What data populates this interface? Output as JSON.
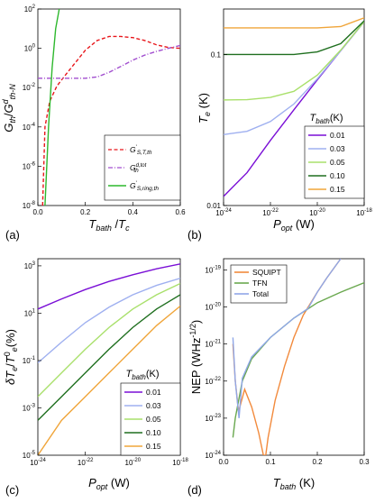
{
  "chart_data": [
    {
      "type": "line",
      "panel_label": "(a)",
      "xlabel": "T_bath / T_c",
      "ylabel": "G_th / G^d_th-N",
      "xscale": "linear",
      "yscale": "log",
      "xlim": [
        0,
        0.6
      ],
      "ylim": [
        1e-08,
        100
      ],
      "x_ticks": [
        "0.0",
        "0.2",
        "0.4",
        "0.6"
      ],
      "y_ticks": [
        "10^-8",
        "10^-6",
        "10^-4",
        "10^-2",
        "10^0",
        "10^2"
      ],
      "legend": {
        "position": "bottom-right"
      },
      "series": [
        {
          "name": "G'_S,T,th",
          "color": "#e8161b",
          "dash": "dash",
          "points": [
            [
              0.02,
              1e-08
            ],
            [
              0.03,
              0.0001
            ],
            [
              0.05,
              0.002
            ],
            [
              0.08,
              0.012
            ],
            [
              0.12,
              0.05
            ],
            [
              0.16,
              0.2
            ],
            [
              0.2,
              0.8
            ],
            [
              0.25,
              2.5
            ],
            [
              0.3,
              4
            ],
            [
              0.35,
              4
            ],
            [
              0.4,
              3.5
            ],
            [
              0.45,
              2.5
            ],
            [
              0.5,
              1.5
            ],
            [
              0.55,
              1.1
            ],
            [
              0.6,
              1.0
            ]
          ]
        },
        {
          "name": "G^d,tot_th",
          "color": "#a24fcf",
          "dash": "dashdot",
          "points": [
            [
              0.0,
              0.03
            ],
            [
              0.1,
              0.03
            ],
            [
              0.2,
              0.03
            ],
            [
              0.25,
              0.035
            ],
            [
              0.3,
              0.06
            ],
            [
              0.35,
              0.12
            ],
            [
              0.4,
              0.25
            ],
            [
              0.45,
              0.45
            ],
            [
              0.5,
              0.7
            ],
            [
              0.55,
              1.0
            ],
            [
              0.6,
              1.4
            ]
          ]
        },
        {
          "name": "G'_S,ring,th",
          "color": "#2db82d",
          "dash": "solid",
          "points": [
            [
              0.03,
              1e-08
            ],
            [
              0.045,
              0.0001
            ],
            [
              0.06,
              0.1
            ],
            [
              0.075,
              10
            ],
            [
              0.09,
              100
            ]
          ]
        }
      ]
    },
    {
      "type": "line",
      "panel_label": "(b)",
      "xlabel": "P_opt (W)",
      "ylabel": "T_e (K)",
      "xscale": "log",
      "yscale": "log",
      "xlim": [
        1e-24,
        1e-18
      ],
      "ylim": [
        0.01,
        0.2
      ],
      "x_ticks": [
        "10^-24",
        "10^-22",
        "10^-20",
        "10^-18"
      ],
      "y_ticks": [
        "0.01",
        "0.1"
      ],
      "legend": {
        "title": "T_bath (K)",
        "position": "bottom-right"
      },
      "series": [
        {
          "name": "0.01",
          "color": "#7a0fd6",
          "points": [
            [
              1e-24,
              0.0115
            ],
            [
              1e-23,
              0.0165
            ],
            [
              1e-22,
              0.027
            ],
            [
              1e-21,
              0.043
            ],
            [
              1e-20,
              0.068
            ],
            [
              1e-19,
              0.106
            ],
            [
              1e-18,
              0.165
            ]
          ]
        },
        {
          "name": "0.03",
          "color": "#9fb0f0",
          "points": [
            [
              1e-24,
              0.0295
            ],
            [
              1e-23,
              0.031
            ],
            [
              1e-22,
              0.036
            ],
            [
              1e-21,
              0.047
            ],
            [
              1e-20,
              0.069
            ],
            [
              1e-19,
              0.106
            ],
            [
              1e-18,
              0.165
            ]
          ]
        },
        {
          "name": "0.05",
          "color": "#a9e06b",
          "points": [
            [
              1e-24,
              0.05
            ],
            [
              1e-23,
              0.0502
            ],
            [
              1e-22,
              0.052
            ],
            [
              1e-21,
              0.057
            ],
            [
              1e-20,
              0.073
            ],
            [
              1e-19,
              0.107
            ],
            [
              1e-18,
              0.165
            ]
          ]
        },
        {
          "name": "0.10",
          "color": "#1f6f1f",
          "points": [
            [
              1e-24,
              0.1
            ],
            [
              1e-23,
              0.1
            ],
            [
              1e-22,
              0.1
            ],
            [
              1e-21,
              0.1
            ],
            [
              1e-20,
              0.104
            ],
            [
              1e-19,
              0.118
            ],
            [
              1e-18,
              0.167
            ]
          ]
        },
        {
          "name": "0.15",
          "color": "#f0a53a",
          "points": [
            [
              1e-24,
              0.15
            ],
            [
              1e-23,
              0.15
            ],
            [
              1e-22,
              0.15
            ],
            [
              1e-21,
              0.15
            ],
            [
              1e-20,
              0.15
            ],
            [
              1e-19,
              0.153
            ],
            [
              1e-18,
              0.175
            ]
          ]
        }
      ]
    },
    {
      "type": "line",
      "panel_label": "(c)",
      "xlabel": "P_opt (W)",
      "ylabel": "δT_e / T^0_e (%)",
      "xscale": "log",
      "yscale": "log",
      "xlim": [
        1e-24,
        1e-18
      ],
      "ylim": [
        1e-05,
        2000
      ],
      "x_ticks": [
        "10^-24",
        "10^-22",
        "10^-20",
        "10^-18"
      ],
      "y_ticks": [
        "10^-5",
        "10^-3",
        "10^-1",
        "10^1",
        "10^3"
      ],
      "legend": {
        "title": "T_bath (K)",
        "position": "bottom-right"
      },
      "series": [
        {
          "name": "0.01",
          "color": "#7a0fd6",
          "points": [
            [
              1e-24,
              15
            ],
            [
              1e-23,
              40
            ],
            [
              1e-22,
              100
            ],
            [
              1e-21,
              220
            ],
            [
              1e-20,
              420
            ],
            [
              1e-19,
              750
            ],
            [
              1e-18,
              1200
            ]
          ]
        },
        {
          "name": "0.03",
          "color": "#9fb0f0",
          "points": [
            [
              1e-24,
              0.08
            ],
            [
              1e-23,
              0.6
            ],
            [
              1e-22,
              4
            ],
            [
              1e-21,
              18
            ],
            [
              1e-20,
              60
            ],
            [
              1e-19,
              150
            ],
            [
              1e-18,
              300
            ]
          ]
        },
        {
          "name": "0.05",
          "color": "#a9e06b",
          "points": [
            [
              1e-24,
              0.003
            ],
            [
              1e-23,
              0.03
            ],
            [
              1e-22,
              0.3
            ],
            [
              1e-21,
              2.5
            ],
            [
              1e-20,
              15
            ],
            [
              1e-19,
              60
            ],
            [
              1e-18,
              180
            ]
          ]
        },
        {
          "name": "0.10",
          "color": "#1f6f1f",
          "points": [
            [
              1e-24,
              0.0003
            ],
            [
              1e-23,
              0.003
            ],
            [
              1e-22,
              0.03
            ],
            [
              1e-21,
              0.3
            ],
            [
              1e-20,
              2.5
            ],
            [
              1e-19,
              15
            ],
            [
              1e-18,
              60
            ]
          ]
        },
        {
          "name": "0.15",
          "color": "#f0a53a",
          "points": [
            [
              1e-24,
              1e-05
            ],
            [
              1e-23,
              0.0003
            ],
            [
              1e-22,
              0.003
            ],
            [
              1e-21,
              0.03
            ],
            [
              1e-20,
              0.3
            ],
            [
              1e-19,
              3
            ],
            [
              1e-18,
              20
            ]
          ]
        }
      ]
    },
    {
      "type": "line",
      "panel_label": "(d)",
      "xlabel": "T_bath (K)",
      "ylabel": "NEP (WHz^-1/2)",
      "xscale": "linear",
      "yscale": "log",
      "xlim": [
        0,
        0.3
      ],
      "ylim": [
        1e-24,
        2e-19
      ],
      "x_ticks": [
        "0.0",
        "0.1",
        "0.2",
        "0.3"
      ],
      "y_ticks": [
        "10^-24",
        "10^-23",
        "10^-22",
        "10^-21",
        "10^-20",
        "10^-19"
      ],
      "legend": {
        "position": "top-left"
      },
      "series": [
        {
          "name": "SQUIPT",
          "color": "#f28a3c",
          "points": [
            [
              0.02,
              1e-21
            ],
            [
              0.025,
              1e-22
            ],
            [
              0.032,
              1.5e-23
            ],
            [
              0.045,
              6e-23
            ],
            [
              0.06,
              2e-23
            ],
            [
              0.075,
              4e-24
            ],
            [
              0.085,
              1e-24
            ],
            [
              0.09,
              1e-24
            ],
            [
              0.095,
              3e-24
            ],
            [
              0.11,
              3e-23
            ],
            [
              0.13,
              2.5e-22
            ],
            [
              0.15,
              1.5e-21
            ],
            [
              0.17,
              6e-21
            ],
            [
              0.2,
              2.5e-20
            ],
            [
              0.22,
              6e-20
            ],
            [
              0.25,
              2e-19
            ]
          ]
        },
        {
          "name": "TFN",
          "color": "#6aa84f",
          "points": [
            [
              0.02,
              3e-24
            ],
            [
              0.025,
              1e-23
            ],
            [
              0.04,
              1e-22
            ],
            [
              0.06,
              4e-22
            ],
            [
              0.1,
              1.5e-21
            ],
            [
              0.15,
              5e-21
            ],
            [
              0.2,
              1.3e-20
            ],
            [
              0.25,
              2.5e-20
            ],
            [
              0.3,
              4.5e-20
            ]
          ]
        },
        {
          "name": "Total",
          "color": "#8fa7e8",
          "points": [
            [
              0.02,
              1.5e-21
            ],
            [
              0.025,
              1e-22
            ],
            [
              0.033,
              1e-23
            ],
            [
              0.04,
              1.2e-22
            ],
            [
              0.06,
              4.5e-22
            ],
            [
              0.1,
              1.5e-21
            ],
            [
              0.15,
              5e-21
            ],
            [
              0.18,
              9e-21
            ],
            [
              0.2,
              2.5e-20
            ],
            [
              0.22,
              6e-20
            ],
            [
              0.25,
              2e-19
            ]
          ]
        }
      ]
    }
  ],
  "legend_labels": {
    "a": [
      "G'S,T,th",
      "Gd,tot th",
      "G'S,ring,th"
    ],
    "d": [
      "SQUIPT",
      "TFN",
      "Total"
    ]
  },
  "legend_title_bc": "T_bath (K)",
  "tick_labels": {
    "a_x": [
      "0.0",
      "0.2",
      "0.4",
      "0.6"
    ],
    "a_y": [
      "10",
      "10",
      "10",
      "10",
      "10",
      "10"
    ],
    "a_y_exp": [
      "-8",
      "-6",
      "-4",
      "-2",
      "0",
      "2"
    ],
    "b_x_exp": [
      "-24",
      "-22",
      "-20",
      "-18"
    ],
    "b_y": [
      "0.01",
      "0.1"
    ],
    "c_x_exp": [
      "-24",
      "-22",
      "-20",
      "-18"
    ],
    "c_y_exp": [
      "-5",
      "-3",
      "-1",
      "1",
      "3"
    ],
    "d_x": [
      "0.0",
      "0.1",
      "0.2",
      "0.3"
    ],
    "d_y_exp": [
      "-24",
      "-23",
      "-22",
      "-21",
      "-20",
      "-19"
    ]
  },
  "legend_values_bc": [
    "0.01",
    "0.03",
    "0.05",
    "0.10",
    "0.15"
  ]
}
